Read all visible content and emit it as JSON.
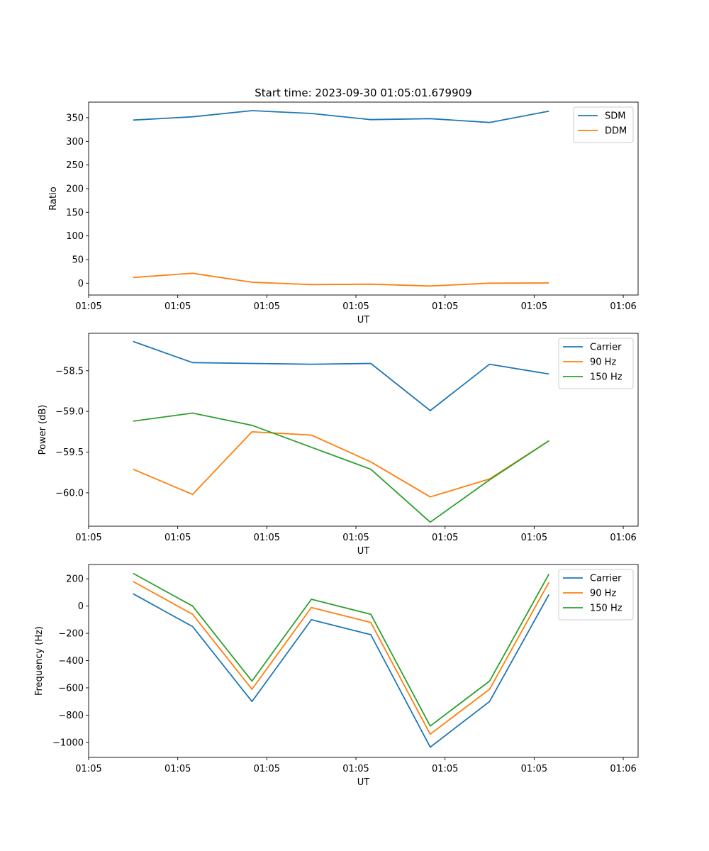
{
  "figure_title": "Start time: 2023-09-30 01:05:01.679909",
  "colors": {
    "blue": "#1f77b4",
    "orange": "#ff7f0e",
    "green": "#2ca02c"
  },
  "chart_data": [
    {
      "type": "line",
      "title": "Start time: 2023-09-30 01:05:01.679909",
      "xlabel": "UT",
      "ylabel": "Ratio",
      "x": [
        0,
        1,
        2,
        3,
        4,
        5,
        6,
        7
      ],
      "xlim": [
        -0.75,
        8.5
      ],
      "xticks": [
        -0.75,
        0.75,
        2.25,
        3.75,
        5.25,
        6.75,
        8.25
      ],
      "xtick_labels": [
        "01:05",
        "01:05",
        "01:05",
        "01:05",
        "01:05",
        "01:05",
        "01:06"
      ],
      "ylim": [
        -25,
        383
      ],
      "yticks": [
        0,
        50,
        100,
        150,
        200,
        250,
        300,
        350
      ],
      "ytick_labels": [
        "0",
        "50",
        "100",
        "150",
        "200",
        "250",
        "300",
        "350"
      ],
      "legend": "top-right",
      "series": [
        {
          "name": "SDM",
          "color": "#1f77b4",
          "values": [
            345,
            352,
            365,
            359,
            346,
            348,
            340,
            364
          ]
        },
        {
          "name": "DDM",
          "color": "#ff7f0e",
          "values": [
            12,
            21,
            2,
            -3,
            -2,
            -6,
            0,
            0.5
          ]
        }
      ]
    },
    {
      "type": "line",
      "title": "",
      "xlabel": "UT",
      "ylabel": "Power (dB)",
      "x": [
        0,
        1,
        2,
        3,
        4,
        5,
        6,
        7
      ],
      "xlim": [
        -0.75,
        8.5
      ],
      "xticks": [
        -0.75,
        0.75,
        2.25,
        3.75,
        5.25,
        6.75,
        8.25
      ],
      "xtick_labels": [
        "01:05",
        "01:05",
        "01:05",
        "01:05",
        "01:05",
        "01:05",
        "01:06"
      ],
      "ylim": [
        -60.41,
        -58.04
      ],
      "yticks": [
        -60.0,
        -59.5,
        -59.0,
        -58.5
      ],
      "ytick_labels": [
        "−60.0",
        "−59.5",
        "−59.0",
        "−58.5"
      ],
      "legend": "top-right",
      "series": [
        {
          "name": "Carrier",
          "color": "#1f77b4",
          "values": [
            -58.14,
            -58.4,
            -58.41,
            -58.42,
            -58.41,
            -58.99,
            -58.42,
            -58.54
          ]
        },
        {
          "name": "90 Hz",
          "color": "#ff7f0e",
          "values": [
            -59.71,
            -60.02,
            -59.25,
            -59.29,
            -59.62,
            -60.05,
            -59.83,
            -59.36
          ]
        },
        {
          "name": "150 Hz",
          "color": "#2ca02c",
          "values": [
            -59.12,
            -59.02,
            -59.17,
            -59.44,
            -59.71,
            -60.36,
            -59.84,
            -59.36
          ]
        }
      ]
    },
    {
      "type": "line",
      "title": "",
      "xlabel": "UT",
      "ylabel": "Frequency (Hz)",
      "x": [
        0,
        1,
        2,
        3,
        4,
        5,
        6,
        7
      ],
      "xlim": [
        -0.75,
        8.5
      ],
      "xticks": [
        -0.75,
        0.75,
        2.25,
        3.75,
        5.25,
        6.75,
        8.25
      ],
      "xtick_labels": [
        "01:05",
        "01:05",
        "01:05",
        "01:05",
        "01:05",
        "01:05",
        "01:06"
      ],
      "ylim": [
        -1110,
        305
      ],
      "yticks": [
        -1000,
        -800,
        -600,
        -400,
        -200,
        0,
        200
      ],
      "ytick_labels": [
        "−1000",
        "−800",
        "−600",
        "−400",
        "−200",
        "0",
        "200"
      ],
      "legend": "top-right",
      "series": [
        {
          "name": "Carrier",
          "color": "#1f77b4",
          "values": [
            90,
            -150,
            -700,
            -100,
            -210,
            -1035,
            -700,
            85
          ]
        },
        {
          "name": "90 Hz",
          "color": "#ff7f0e",
          "values": [
            180,
            -60,
            -610,
            -10,
            -120,
            -940,
            -610,
            175
          ]
        },
        {
          "name": "150 Hz",
          "color": "#2ca02c",
          "values": [
            240,
            0,
            -550,
            50,
            -60,
            -880,
            -550,
            235
          ]
        }
      ]
    }
  ]
}
